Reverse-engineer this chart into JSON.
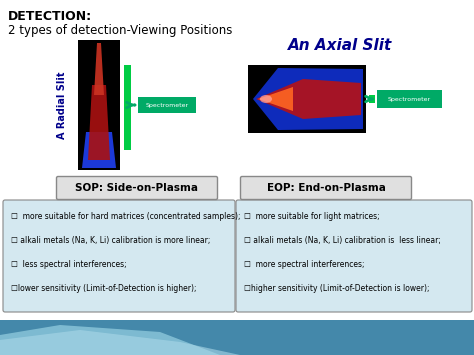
{
  "title1": "DETECTION:",
  "title2": "2 types of detection-Viewing Positions",
  "left_label": "A Radial Slit",
  "right_label": "An Axial Slit",
  "sop_label": "SOP: Side-on-Plasma",
  "eop_label": "EOP: End-on-Plasma",
  "spectrometer_label": "Spectrometer",
  "left_bullets": [
    "☐  more suitable for hard matrices (concentrated samples);",
    "☐ alkali metals (Na, K, Li) calibration is more linear;",
    "☐  less spectral interferences;",
    "☐lower sensitivity (Limit-of-Detection is higher);"
  ],
  "right_bullets": [
    "☐  more suitable for light matrices;",
    "☐ alkali metals (Na, K, Li) calibration is  less linear;",
    "☐  more spectral interferences;",
    "☐higher sensitivity (Limit-of-Detection is lower);"
  ],
  "bg_color": "#ffffff",
  "title_color": "#000000",
  "blue_label_color": "#00008B",
  "axial_title_color": "#00008B",
  "box_bg": "#d4e8f0",
  "box_edge": "#888888",
  "bottom_bg": "#4488aa",
  "arrow_color": "#00aa66",
  "spectrometer_bg": "#00aa66",
  "green_slit_color": "#00cc44"
}
